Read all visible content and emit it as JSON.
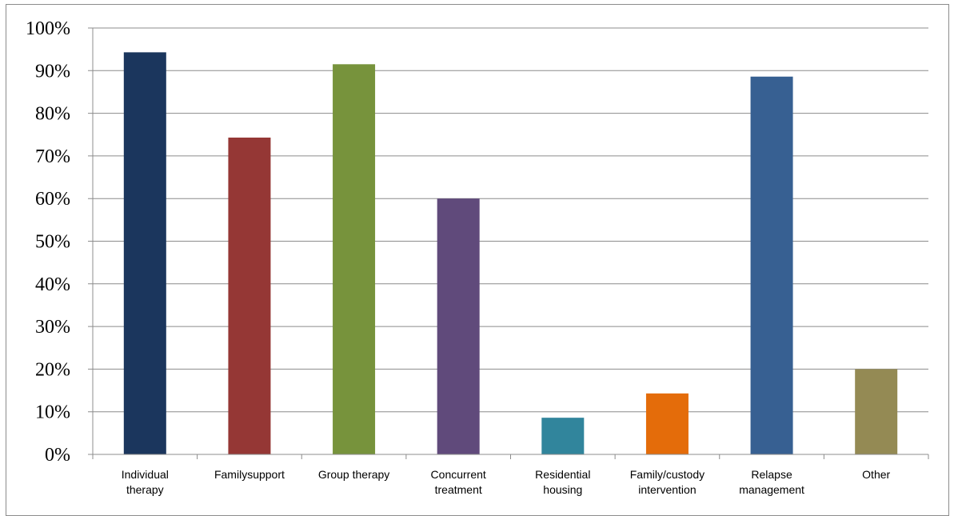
{
  "chart_data": {
    "type": "bar",
    "title": "",
    "xlabel": "",
    "ylabel": "",
    "ylim": [
      0,
      100
    ],
    "y_ticks": [
      "0%",
      "10%",
      "20%",
      "30%",
      "40%",
      "50%",
      "60%",
      "70%",
      "80%",
      "90%",
      "100%"
    ],
    "grid": true,
    "legend": "none",
    "categories": [
      [
        "Individual",
        "therapy"
      ],
      [
        "Familysupport"
      ],
      [
        "Group therapy"
      ],
      [
        "Concurrent",
        "treatment"
      ],
      [
        "Residential",
        "housing"
      ],
      [
        "Family/custody",
        "intervention"
      ],
      [
        "Relapse",
        "management"
      ],
      [
        "Other"
      ]
    ],
    "values": [
      94.3,
      74.3,
      91.5,
      60.0,
      8.6,
      14.3,
      88.6,
      20.0
    ],
    "colors": [
      "#1b365d",
      "#953735",
      "#77933c",
      "#604a7b",
      "#31859c",
      "#e46c0a",
      "#376092",
      "#948a54"
    ]
  }
}
